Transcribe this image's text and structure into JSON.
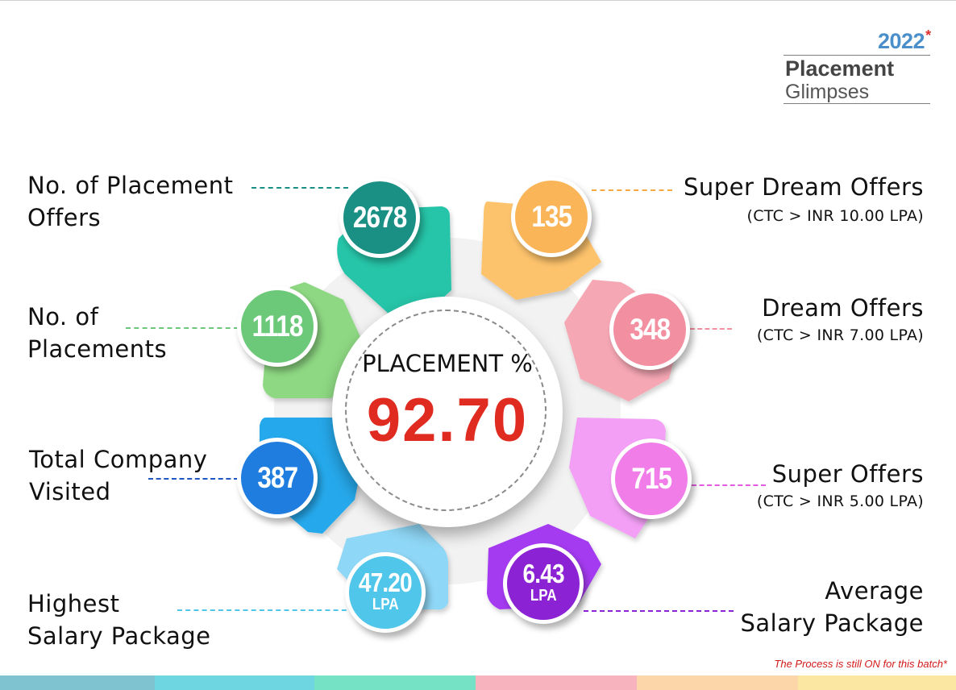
{
  "badge": {
    "year": "2022",
    "star": "*",
    "line1": "Placement",
    "line2": "Glimpses"
  },
  "center": {
    "title": "PLACEMENT %",
    "value": "92.70"
  },
  "items": [
    {
      "label1": "No. of Placement",
      "label2": "Offers",
      "value": "2678",
      "color": "#1a8f84"
    },
    {
      "label1": "No. of",
      "label2": "Placements",
      "value": "1118",
      "color": "#6cc97a"
    },
    {
      "label1": "Total Company",
      "label2": "Visited",
      "value": "387",
      "color": "#1f7de0"
    },
    {
      "label1": "Highest",
      "label2": "Salary Package",
      "value": "47.20",
      "unit": "LPA",
      "color": "#4fc6ea"
    },
    {
      "label1": "Super Dream Offers",
      "sub": "(CTC > INR 10.00 LPA)",
      "value": "135",
      "color": "#fbb559"
    },
    {
      "label1": "Dream Offers",
      "sub": "(CTC > INR 7.00 LPA)",
      "value": "348",
      "color": "#f28fa0"
    },
    {
      "label1": "Super Offers",
      "sub": "(CTC > INR 5.00 LPA)",
      "value": "715",
      "color": "#f17de8"
    },
    {
      "label1": "Average",
      "label2": "Salary Package",
      "value": "6.43",
      "unit": "LPA",
      "color": "#8b22d4"
    }
  ],
  "note": "The Process is still ON for this batch*",
  "colors": {
    "petal_teal": "#26c4a8",
    "petal_green": "#8ed883",
    "petal_blue": "#25a9ec",
    "petal_lightblue": "#8fd7f6",
    "petal_orange": "#fdc36c",
    "petal_pink": "#f6a7b4",
    "petal_magenta": "#f39ff5",
    "petal_purple": "#a43bf0",
    "footer": [
      "#7ec3cf",
      "#6ed6e0",
      "#75e2c6",
      "#f8b4be",
      "#fcd5a8",
      "#fbe6a2"
    ]
  }
}
